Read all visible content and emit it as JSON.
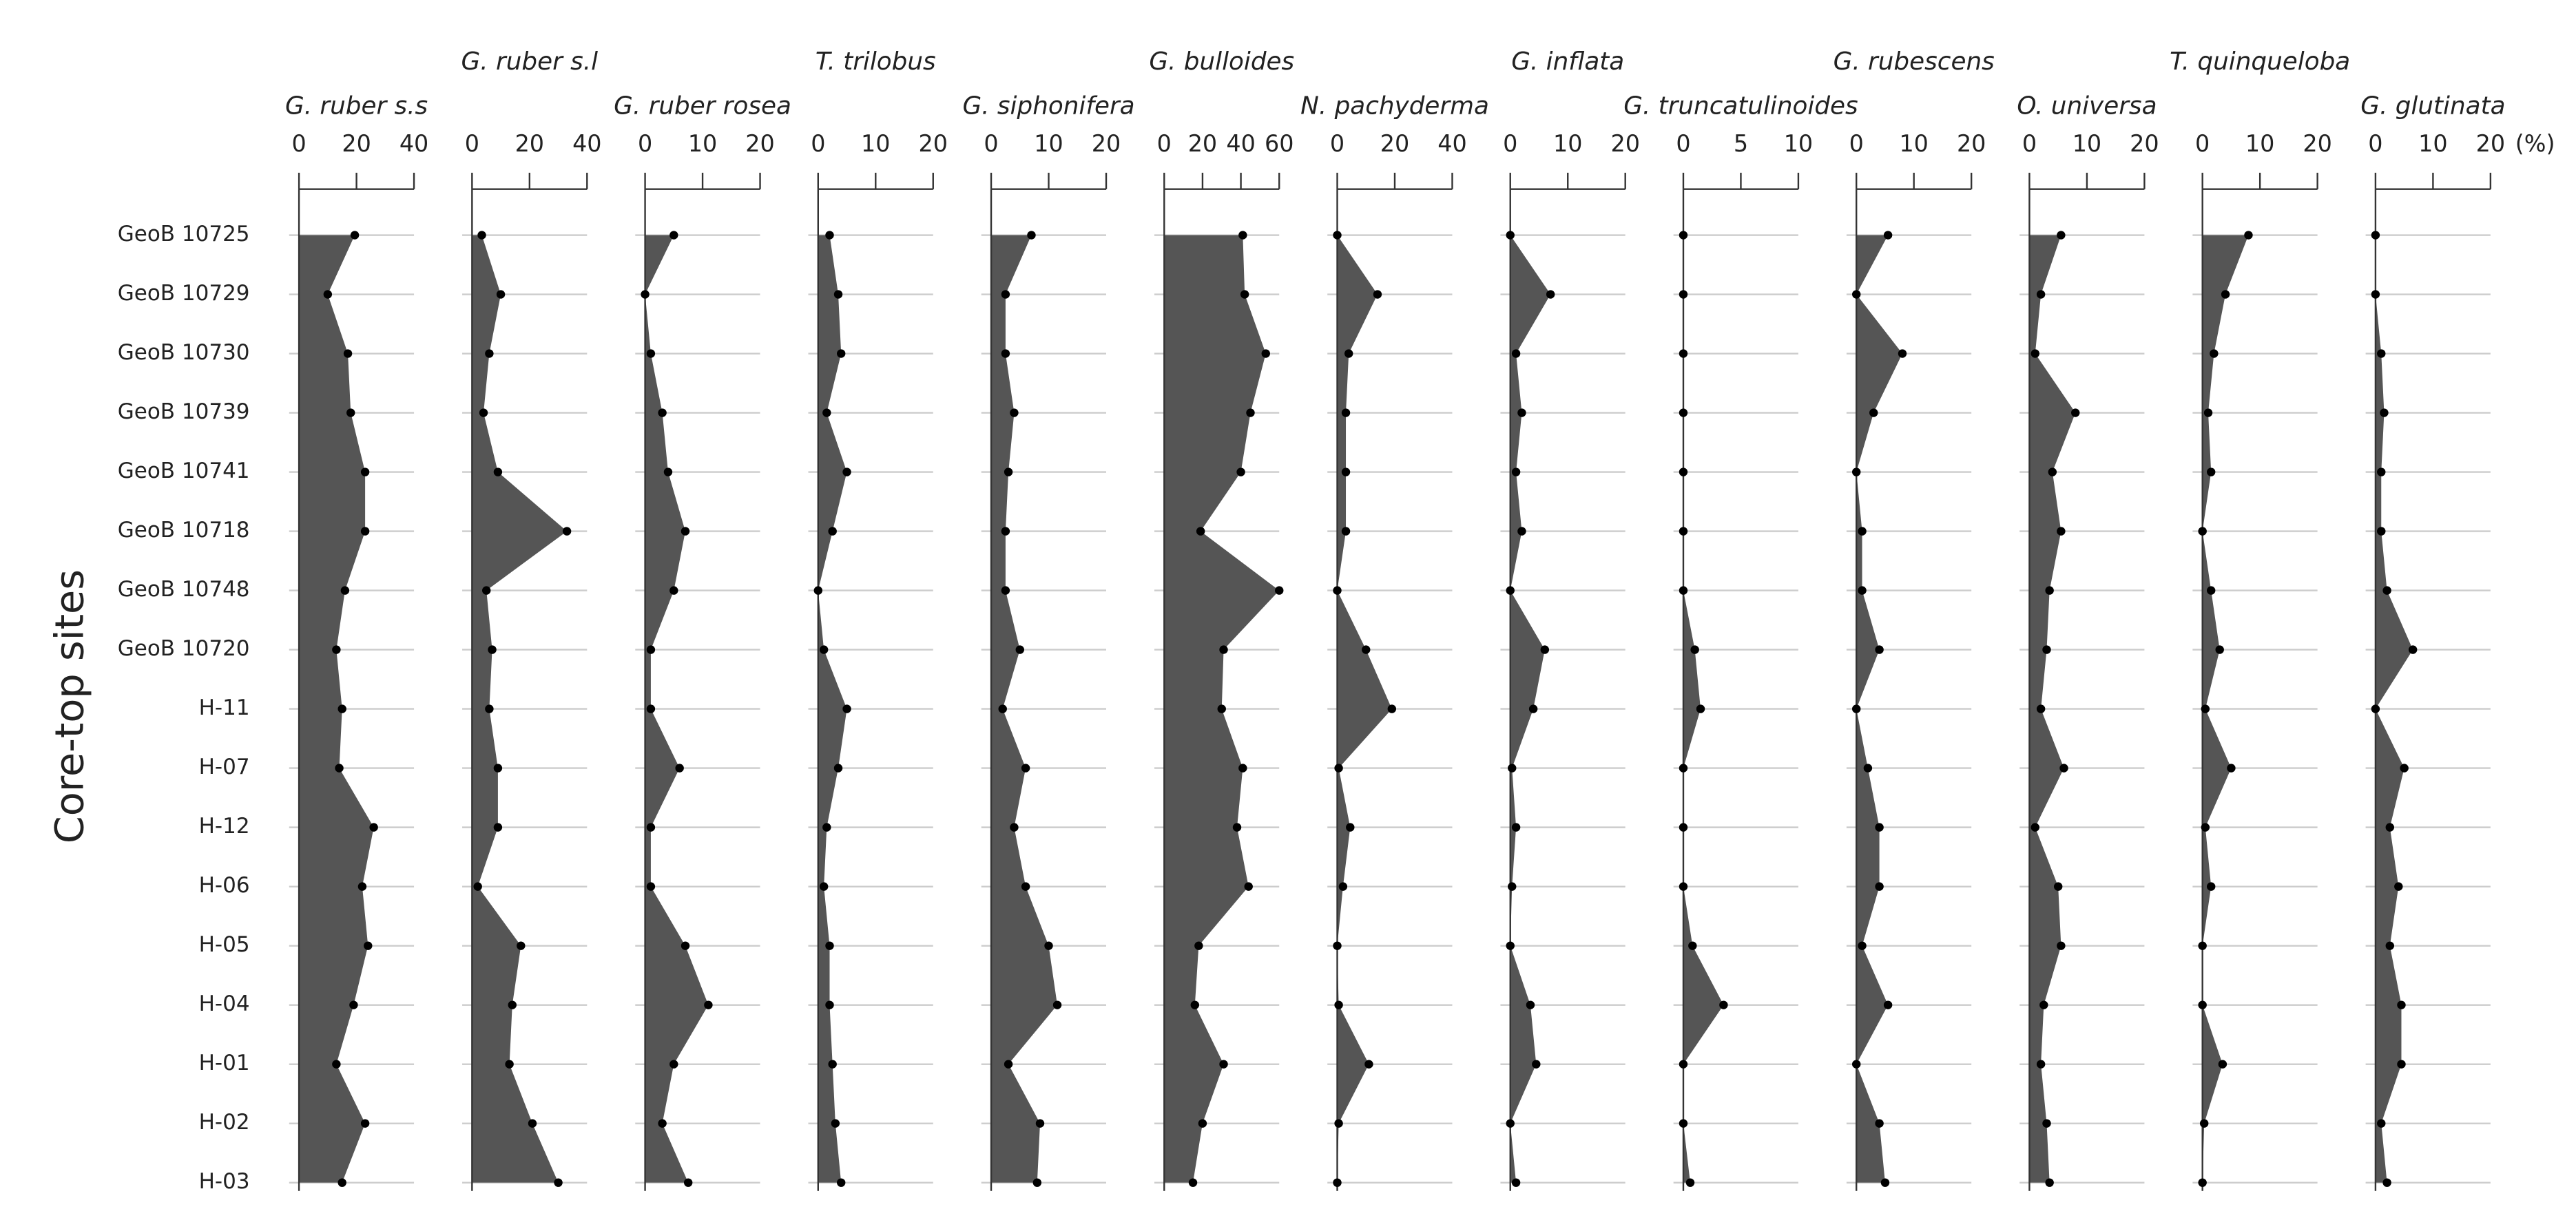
{
  "chart_data": {
    "type": "area",
    "y_label": "Core-top sites",
    "unit_label": "(%)",
    "categories": [
      "GeoB 10725",
      "GeoB 10729",
      "GeoB 10730",
      "GeoB 10739",
      "GeoB 10741",
      "GeoB 10718",
      "GeoB 10748",
      "GeoB 10720",
      "H-11",
      "H-07",
      "H-12",
      "H-06",
      "H-05",
      "H-04",
      "H-01",
      "H-02",
      "H-03"
    ],
    "series": [
      {
        "name": "G. ruber s.s",
        "color": "#555555",
        "xlim": [
          0,
          40
        ],
        "xticks": [
          0,
          20,
          40
        ],
        "values": [
          19.4,
          10,
          17,
          18,
          23,
          23,
          16,
          13,
          15,
          14,
          26,
          22,
          24,
          19,
          13,
          23,
          15
        ]
      },
      {
        "name": "G. ruber s.l",
        "color": "#555555",
        "xlim": [
          0,
          40
        ],
        "xticks": [
          0,
          20,
          40
        ],
        "values": [
          3.4,
          10,
          6,
          4,
          9,
          33,
          5,
          7,
          6,
          9,
          9,
          2,
          17,
          14,
          13,
          21,
          30
        ]
      },
      {
        "name": "G. ruber rosea",
        "color": "#555555",
        "xlim": [
          0,
          20
        ],
        "xticks": [
          0,
          10,
          20
        ],
        "values": [
          5,
          0,
          1,
          3,
          4,
          7,
          5,
          1,
          1,
          6,
          1,
          1,
          7,
          11,
          5,
          3,
          7.5
        ]
      },
      {
        "name": "T. trilobus",
        "color": "#555555",
        "xlim": [
          0,
          20
        ],
        "xticks": [
          0,
          10,
          20
        ],
        "values": [
          2,
          3.5,
          4,
          1.5,
          5,
          2.5,
          0,
          1,
          5,
          3.5,
          1.5,
          1,
          2,
          2,
          2.5,
          3,
          4
        ]
      },
      {
        "name": "G. siphonifera",
        "color": "#555555",
        "xlim": [
          0,
          20
        ],
        "xticks": [
          0,
          10,
          20
        ],
        "values": [
          7,
          2.5,
          2.5,
          4,
          3,
          2.5,
          2.5,
          5,
          2,
          6,
          4,
          6,
          10,
          11.5,
          3,
          8.5,
          8
        ]
      },
      {
        "name": "G. bulloides",
        "color": "#555555",
        "xlim": [
          0,
          60
        ],
        "xticks": [
          0,
          20,
          40,
          60
        ],
        "values": [
          41,
          42,
          53,
          45,
          40,
          19,
          60,
          31,
          30,
          41,
          38,
          44,
          18,
          16,
          31,
          20,
          15
        ]
      },
      {
        "name": "N. pachyderma",
        "color": "#555555",
        "xlim": [
          0,
          40
        ],
        "xticks": [
          0,
          20,
          40
        ],
        "values": [
          0,
          14,
          4,
          3,
          3,
          3,
          0,
          10,
          19,
          0.5,
          4.5,
          2,
          0,
          0.5,
          11,
          0.5,
          0
        ]
      },
      {
        "name": "G. inflata",
        "color": "#555555",
        "xlim": [
          0,
          20
        ],
        "xticks": [
          0,
          10,
          20
        ],
        "values": [
          0,
          7,
          1,
          2,
          1,
          2,
          0,
          6,
          4,
          0.3,
          1,
          0.3,
          0,
          3.5,
          4.5,
          0,
          1
        ]
      },
      {
        "name": "G. truncatulinoides",
        "color": "#555555",
        "xlim": [
          0,
          10
        ],
        "xticks": [
          0,
          5,
          10
        ],
        "values": [
          0,
          0,
          0,
          0,
          0,
          0,
          0,
          1,
          1.5,
          0,
          0,
          0,
          0.8,
          3.5,
          0,
          0,
          0.6
        ]
      },
      {
        "name": "G. rubescens",
        "color": "#555555",
        "xlim": [
          0,
          20
        ],
        "xticks": [
          0,
          10,
          20
        ],
        "values": [
          5.5,
          0,
          8,
          3,
          0,
          1,
          1,
          4,
          0,
          2,
          4,
          4,
          1,
          5.5,
          0,
          4,
          5
        ]
      },
      {
        "name": "O. universa",
        "color": "#555555",
        "xlim": [
          0,
          20
        ],
        "xticks": [
          0,
          10,
          20
        ],
        "values": [
          5.5,
          2,
          1,
          8,
          4,
          5.5,
          3.5,
          3,
          2,
          6,
          1,
          5,
          5.5,
          2.5,
          2,
          3,
          3.5
        ]
      },
      {
        "name": "T. quinqueloba",
        "color": "#555555",
        "xlim": [
          0,
          20
        ],
        "xticks": [
          0,
          10,
          20
        ],
        "values": [
          8,
          4,
          2,
          1,
          1.5,
          0,
          1.5,
          3,
          0.5,
          5,
          0.5,
          1.5,
          0,
          0,
          3.5,
          0.3,
          0
        ]
      },
      {
        "name": "G. glutinata",
        "color": "#555555",
        "xlim": [
          0,
          20
        ],
        "xticks": [
          0,
          10,
          20
        ],
        "values": [
          0,
          0,
          1,
          1.5,
          1,
          1,
          2,
          6.5,
          0,
          5,
          2.5,
          4,
          2.5,
          4.5,
          4.5,
          1,
          2
        ]
      }
    ]
  }
}
